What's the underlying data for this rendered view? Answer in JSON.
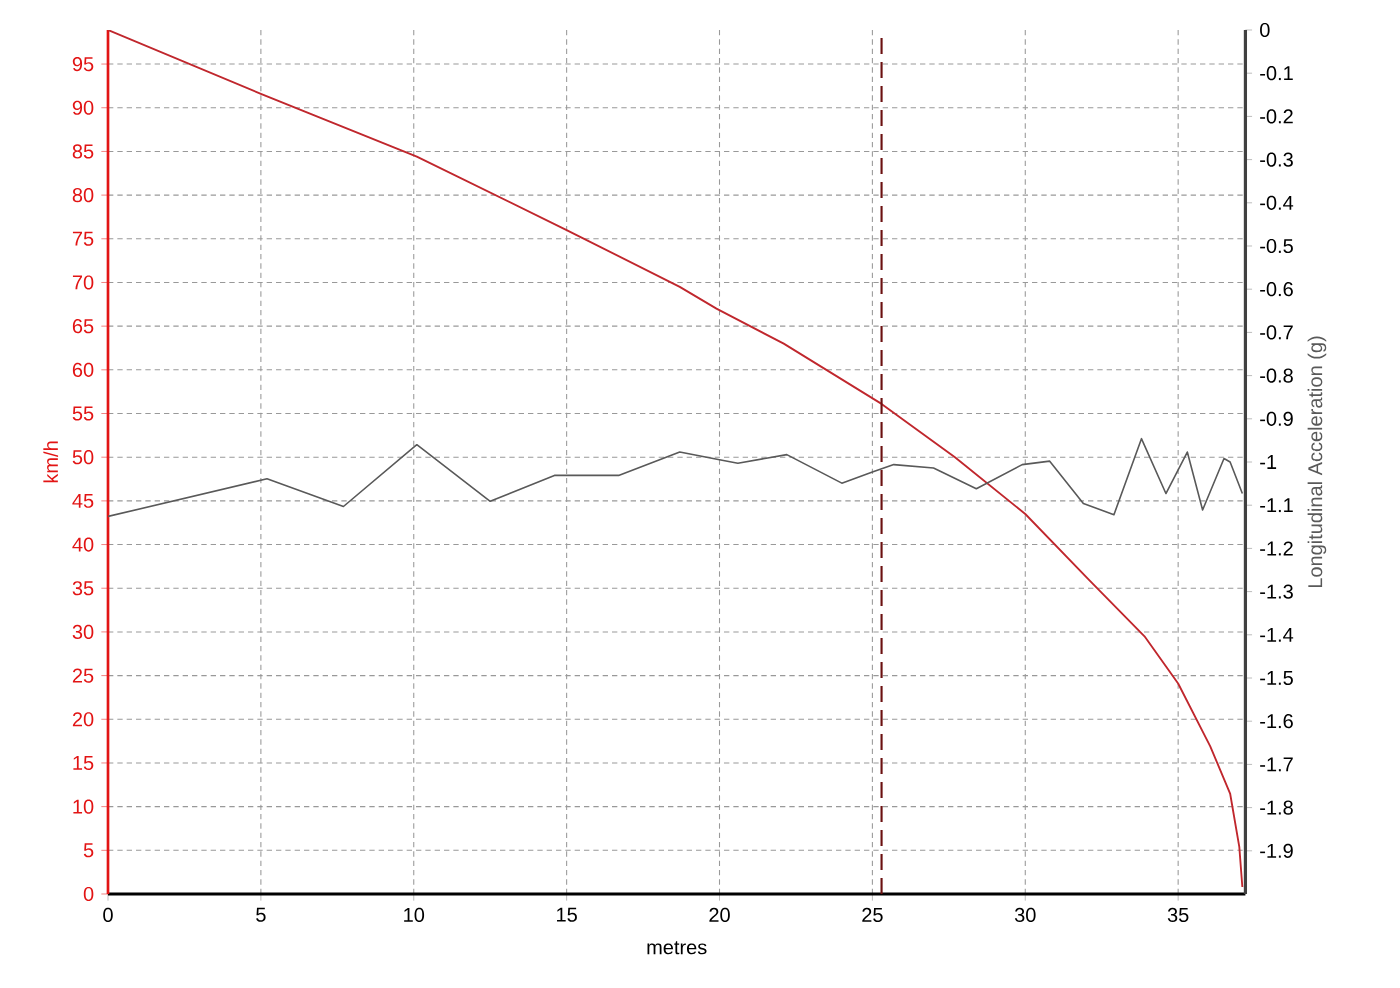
{
  "chart_data": {
    "type": "line",
    "xlabel": "metres",
    "ylabel": "km/h",
    "y2label": "Longitudinal Acceleration (g)",
    "xlim": [
      0,
      37.2
    ],
    "ylim": [
      0,
      98.9
    ],
    "y2lim": [
      -2.0,
      0
    ],
    "xticks": [
      0,
      5,
      10,
      15,
      20,
      25,
      30,
      35
    ],
    "yticks": [
      0,
      5,
      10,
      15,
      20,
      25,
      30,
      35,
      40,
      45,
      50,
      55,
      60,
      65,
      70,
      75,
      80,
      85,
      90,
      95
    ],
    "y2ticks": [
      0,
      -0.1,
      -0.2,
      -0.3,
      -0.4,
      -0.5,
      -0.6,
      -0.7,
      -0.8,
      -0.9,
      -1,
      -1.1,
      -1.2,
      -1.3,
      -1.4,
      -1.5,
      -1.6,
      -1.7,
      -1.8,
      -1.9
    ],
    "grid": true,
    "ref_lines": [
      {
        "axis": "x",
        "value": 25.3,
        "color": "#6b1010",
        "line_style": "dashed"
      }
    ],
    "series": [
      {
        "color": "#c0272d",
        "x": [
          0,
          5.0,
          10.1,
          15.0,
          18.7,
          19.9,
          22.1,
          25.3,
          27.7,
          30.0,
          32.1,
          33.9,
          35.0,
          36.05,
          36.7,
          37.0,
          37.1
        ],
        "values": [
          98.9,
          91.6,
          84.4,
          76.0,
          69.5,
          67.0,
          63.0,
          56.1,
          50.0,
          43.5,
          35.9,
          29.5,
          24.1,
          16.9,
          11.5,
          5.4,
          0.8
        ]
      },
      {
        "color": "#595959",
        "axis": "y2",
        "x": [
          0,
          5.2,
          7.7,
          10.1,
          12.5,
          14.6,
          16.7,
          18.7,
          20.0,
          20.6,
          22.2,
          24.0,
          25.0,
          25.7,
          27.0,
          28.4,
          29.9,
          30.8,
          31.9,
          32.9,
          33.8,
          34.6,
          35.3,
          35.8,
          36.5,
          36.7,
          37.1
        ],
        "values": [
          -1.126,
          -1.039,
          -1.103,
          -0.96,
          -1.091,
          -1.031,
          -1.031,
          -0.977,
          -0.995,
          -1.003,
          -0.983,
          -1.049,
          -1.023,
          -1.006,
          -1.014,
          -1.062,
          -1.006,
          -0.998,
          -1.096,
          -1.122,
          -0.946,
          -1.073,
          -0.977,
          -1.111,
          -0.992,
          -1.0,
          -1.073
        ]
      }
    ]
  }
}
